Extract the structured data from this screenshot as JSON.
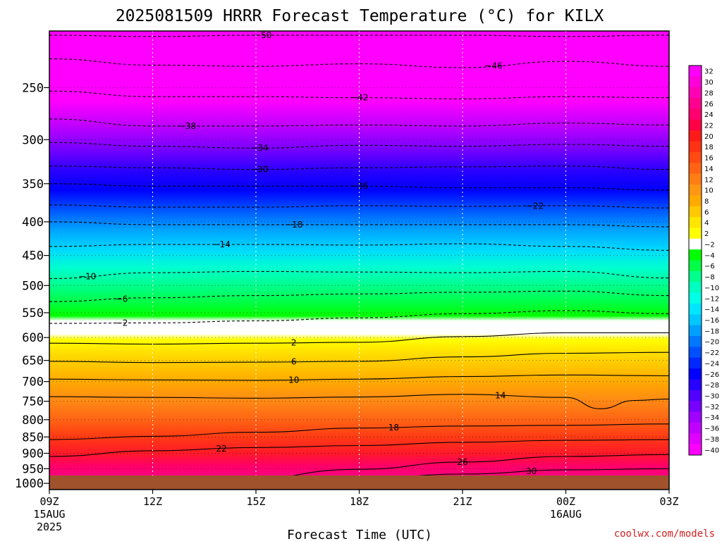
{
  "chart_data": {
    "type": "heatmap",
    "title": "2025081509 HRRR Forecast Temperature (°C) for KILX",
    "xlabel": "Forecast Time (UTC)",
    "ylabel": "",
    "credit": "coolwx.com/models",
    "x_ticks": [
      {
        "label": "09Z",
        "sub": [
          "15AUG",
          "2025"
        ],
        "hour": 0
      },
      {
        "label": "12Z",
        "sub": [],
        "hour": 3
      },
      {
        "label": "15Z",
        "sub": [],
        "hour": 6
      },
      {
        "label": "18Z",
        "sub": [],
        "hour": 9
      },
      {
        "label": "21Z",
        "sub": [],
        "hour": 12
      },
      {
        "label": "00Z",
        "sub": [
          "16AUG"
        ],
        "hour": 15
      },
      {
        "label": "03Z",
        "sub": [],
        "hour": 18
      }
    ],
    "xlim_hours": [
      0,
      18
    ],
    "y_ticks": [
      250,
      300,
      350,
      400,
      450,
      500,
      550,
      600,
      650,
      700,
      750,
      800,
      850,
      900,
      950,
      1000
    ],
    "ylim_hpa": [
      200,
      1000
    ],
    "y_scale": "log",
    "grid": true,
    "colorbar": {
      "placement": "right",
      "labels": [
        "32",
        "30",
        "28",
        "26",
        "24",
        "22",
        "20",
        "18",
        "16",
        "14",
        "12",
        "10",
        "8",
        "6",
        "4",
        "2",
        "-2",
        "-4",
        "-6",
        "-8",
        "-10",
        "-12",
        "-14",
        "-16",
        "-18",
        "-20",
        "-22",
        "-24",
        "-26",
        "-28",
        "-30",
        "-32",
        "-34",
        "-36",
        "-38",
        "-40"
      ],
      "colors": [
        "#ff00ff",
        "#ff00d8",
        "#ff00b4",
        "#ff0090",
        "#ff006e",
        "#ff0046",
        "#ff1a1a",
        "#ff3214",
        "#ff4a12",
        "#ff6414",
        "#ff7e14",
        "#ff9614",
        "#ffaa00",
        "#ffc800",
        "#ffe600",
        "#ffff00",
        "#ffffff",
        "#00ff00",
        "#00ff46",
        "#00ff8c",
        "#00ffc0",
        "#00ffe6",
        "#00e6ff",
        "#00c8ff",
        "#00a0ff",
        "#0078ff",
        "#0050ff",
        "#0028ff",
        "#0000ff",
        "#2800ff",
        "#5000ff",
        "#7800ff",
        "#a000ff",
        "#c000ff",
        "#e000ff",
        "#ff00ff"
      ]
    },
    "contours_below_zero": [
      {
        "temp": -50,
        "pressure_at_x": [
          [
            0,
            208
          ],
          [
            3,
            209
          ],
          [
            6,
            208
          ],
          [
            9,
            208
          ],
          [
            12,
            208
          ],
          [
            15,
            209
          ],
          [
            18,
            208
          ]
        ],
        "label_hour": 6.2
      },
      {
        "temp": -46,
        "pressure_at_x": [
          [
            0,
            226
          ],
          [
            3,
            231
          ],
          [
            6,
            232
          ],
          [
            9,
            230
          ],
          [
            12,
            233
          ],
          [
            15,
            228
          ],
          [
            18,
            232
          ]
        ],
        "label_hour": 12.9
      },
      {
        "temp": -42,
        "pressure_at_x": [
          [
            0,
            253
          ],
          [
            3,
            258
          ],
          [
            6,
            258
          ],
          [
            9,
            259
          ],
          [
            12,
            260
          ],
          [
            15,
            258
          ],
          [
            18,
            259
          ]
        ],
        "label_hour": 9
      },
      {
        "temp": -38,
        "pressure_at_x": [
          [
            0,
            279
          ],
          [
            3,
            286
          ],
          [
            6,
            286
          ],
          [
            9,
            285
          ],
          [
            12,
            286
          ],
          [
            15,
            283
          ],
          [
            18,
            285
          ]
        ],
        "label_hour": 4
      },
      {
        "temp": -34,
        "pressure_at_x": [
          [
            0,
            303
          ],
          [
            3,
            307
          ],
          [
            6,
            309
          ],
          [
            9,
            306
          ],
          [
            12,
            307
          ],
          [
            15,
            305
          ],
          [
            18,
            307
          ]
        ],
        "label_hour": 6.1
      },
      {
        "temp": -30,
        "pressure_at_x": [
          [
            0,
            329
          ],
          [
            3,
            331
          ],
          [
            6,
            333
          ],
          [
            9,
            331
          ],
          [
            12,
            330
          ],
          [
            15,
            329
          ],
          [
            18,
            333
          ]
        ],
        "label_hour": 6.1
      },
      {
        "temp": -26,
        "pressure_at_x": [
          [
            0,
            350
          ],
          [
            3,
            353
          ],
          [
            6,
            353
          ],
          [
            9,
            353
          ],
          [
            12,
            355
          ],
          [
            15,
            355
          ],
          [
            18,
            358
          ]
        ],
        "label_hour": 9
      },
      {
        "temp": -22,
        "pressure_at_x": [
          [
            0,
            377
          ],
          [
            3,
            380
          ],
          [
            6,
            380
          ],
          [
            9,
            378
          ],
          [
            12,
            379
          ],
          [
            15,
            378
          ],
          [
            18,
            381
          ]
        ],
        "label_hour": 14.1
      },
      {
        "temp": -18,
        "pressure_at_x": [
          [
            0,
            400
          ],
          [
            3,
            404
          ],
          [
            6,
            404
          ],
          [
            9,
            404
          ],
          [
            12,
            404
          ],
          [
            15,
            404
          ],
          [
            18,
            407
          ]
        ],
        "label_hour": 7.1
      },
      {
        "temp": -14,
        "pressure_at_x": [
          [
            0,
            436
          ],
          [
            3,
            433
          ],
          [
            6,
            433
          ],
          [
            9,
            434
          ],
          [
            12,
            432
          ],
          [
            15,
            436
          ],
          [
            18,
            442
          ]
        ],
        "label_hour": 5
      },
      {
        "temp": -10,
        "pressure_at_x": [
          [
            0,
            488
          ],
          [
            3,
            478
          ],
          [
            6,
            476
          ],
          [
            9,
            477
          ],
          [
            12,
            478
          ],
          [
            15,
            476
          ],
          [
            18,
            487
          ]
        ],
        "label_hour": 1.1
      },
      {
        "temp": -6,
        "pressure_at_x": [
          [
            0,
            529
          ],
          [
            3,
            522
          ],
          [
            6,
            518
          ],
          [
            9,
            515
          ],
          [
            12,
            512
          ],
          [
            15,
            510
          ],
          [
            18,
            518
          ]
        ],
        "label_hour": 2.1
      },
      {
        "temp": -2,
        "pressure_at_x": [
          [
            0,
            571
          ],
          [
            3,
            570
          ],
          [
            6,
            566
          ],
          [
            9,
            560
          ],
          [
            12,
            552
          ],
          [
            15,
            546
          ],
          [
            18,
            552
          ]
        ],
        "label_hour": 2.1
      }
    ],
    "contours_above_zero": [
      {
        "temp": 2,
        "pressure_at_x": [
          [
            0,
            612
          ],
          [
            3,
            614
          ],
          [
            6,
            612
          ],
          [
            9,
            610
          ],
          [
            12,
            598
          ],
          [
            15,
            590
          ],
          [
            18,
            590
          ]
        ],
        "label_hour": 7.1
      },
      {
        "temp": 6,
        "pressure_at_x": [
          [
            0,
            652
          ],
          [
            3,
            655
          ],
          [
            6,
            654
          ],
          [
            9,
            652
          ],
          [
            12,
            642
          ],
          [
            15,
            634
          ],
          [
            18,
            632
          ]
        ],
        "label_hour": 7.1
      },
      {
        "temp": 10,
        "pressure_at_x": [
          [
            0,
            694
          ],
          [
            3,
            696
          ],
          [
            6,
            697
          ],
          [
            9,
            694
          ],
          [
            12,
            688
          ],
          [
            15,
            684
          ],
          [
            18,
            686
          ]
        ],
        "label_hour": 7.1
      },
      {
        "temp": 14,
        "pressure_at_x": [
          [
            0,
            738
          ],
          [
            3,
            740
          ],
          [
            6,
            742
          ],
          [
            9,
            739
          ],
          [
            12,
            732
          ],
          [
            15,
            740
          ],
          [
            16,
            770
          ],
          [
            17,
            748
          ],
          [
            18,
            744
          ]
        ],
        "label_hour": 13.1
      },
      {
        "temp": 18,
        "pressure_at_x": [
          [
            0,
            858
          ],
          [
            3,
            848
          ],
          [
            6,
            836
          ],
          [
            9,
            824
          ],
          [
            12,
            818
          ],
          [
            15,
            816
          ],
          [
            18,
            812
          ]
        ],
        "label_hour": 10
      },
      {
        "temp": 22,
        "pressure_at_x": [
          [
            0,
            910
          ],
          [
            3,
            892
          ],
          [
            6,
            882
          ],
          [
            9,
            876
          ],
          [
            12,
            866
          ],
          [
            15,
            860
          ],
          [
            18,
            858
          ]
        ],
        "label_hour": 5
      },
      {
        "temp": 26,
        "pressure_at_x": [
          [
            5,
            1000
          ],
          [
            9,
            952
          ],
          [
            12,
            928
          ],
          [
            15,
            910
          ],
          [
            18,
            904
          ]
        ],
        "label_hour": 12
      },
      {
        "temp": 30,
        "pressure_at_x": [
          [
            8,
            1000
          ],
          [
            12,
            968
          ],
          [
            15,
            954
          ],
          [
            18,
            950
          ]
        ],
        "label_hour": 14
      }
    ],
    "ground_color": "#a0522d"
  }
}
